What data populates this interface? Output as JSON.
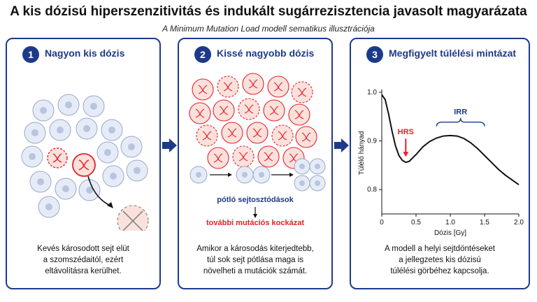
{
  "header": {
    "title": "A kis dózisú hiperszenzitivitás és indukált sugárrezisztencia javasolt magyarázata",
    "subtitle": "A Minimum Mutation Load modell sematikus illusztrációja"
  },
  "panels": [
    {
      "number": "1",
      "title": "Nagyon kis dózis",
      "description": [
        "Kevés károsodott sejt elüt",
        "a szomszédaitól, ezért",
        "eltávolításra kerülhet."
      ]
    },
    {
      "number": "2",
      "title": "Kissé nagyobb dózis",
      "label_division": "pótló sejtosztódások",
      "label_risk": "további mutációs kockázat",
      "description": [
        "Amikor a károsodás kiterjedtebb,",
        "túl sok sejt pótlása maga is",
        "növelheti a mutációk számát."
      ]
    },
    {
      "number": "3",
      "title": "Megfigyelt túlélési mintázat",
      "description": [
        "A modell a helyi sejtdöntéseket",
        "a jellegzetes kis dózisú",
        "túlélési görbéhez kapcsolja."
      ]
    }
  ],
  "colors": {
    "navy": "#1d3a8a",
    "red": "#e8202a",
    "healthy_cell_fill": "#e6ecf7",
    "damaged_cell_fill": "#fbe1dc"
  },
  "chart_data": {
    "type": "line",
    "xlabel": "Dózis [Gy]",
    "ylabel": "Túlélő hányad",
    "xlim": [
      0,
      2.0
    ],
    "ylim": [
      0.75,
      1.0
    ],
    "xticks": [
      0,
      0.5,
      1.0,
      1.5,
      2.0
    ],
    "xtick_labels": [
      "0",
      "0.5",
      "1.0",
      "1.5",
      "2.0"
    ],
    "yticks": [
      0.8,
      0.9,
      1.0
    ],
    "ytick_labels": [
      "0.8",
      "0.9",
      "1.0"
    ],
    "x": [
      0,
      0.05,
      0.1,
      0.15,
      0.2,
      0.25,
      0.3,
      0.35,
      0.4,
      0.5,
      0.6,
      0.7,
      0.8,
      0.9,
      1.0,
      1.1,
      1.2,
      1.3,
      1.4,
      1.5,
      1.6,
      1.7,
      1.8,
      1.9,
      2.0
    ],
    "y": [
      0.995,
      0.985,
      0.955,
      0.92,
      0.89,
      0.87,
      0.86,
      0.856,
      0.858,
      0.872,
      0.888,
      0.899,
      0.906,
      0.91,
      0.911,
      0.91,
      0.905,
      0.896,
      0.884,
      0.87,
      0.856,
      0.842,
      0.83,
      0.82,
      0.81
    ],
    "annotations": [
      {
        "text": "HRS",
        "x": 0.35,
        "y": 0.856
      },
      {
        "text": "IRR",
        "x_range": [
          0.8,
          1.5
        ]
      }
    ]
  }
}
